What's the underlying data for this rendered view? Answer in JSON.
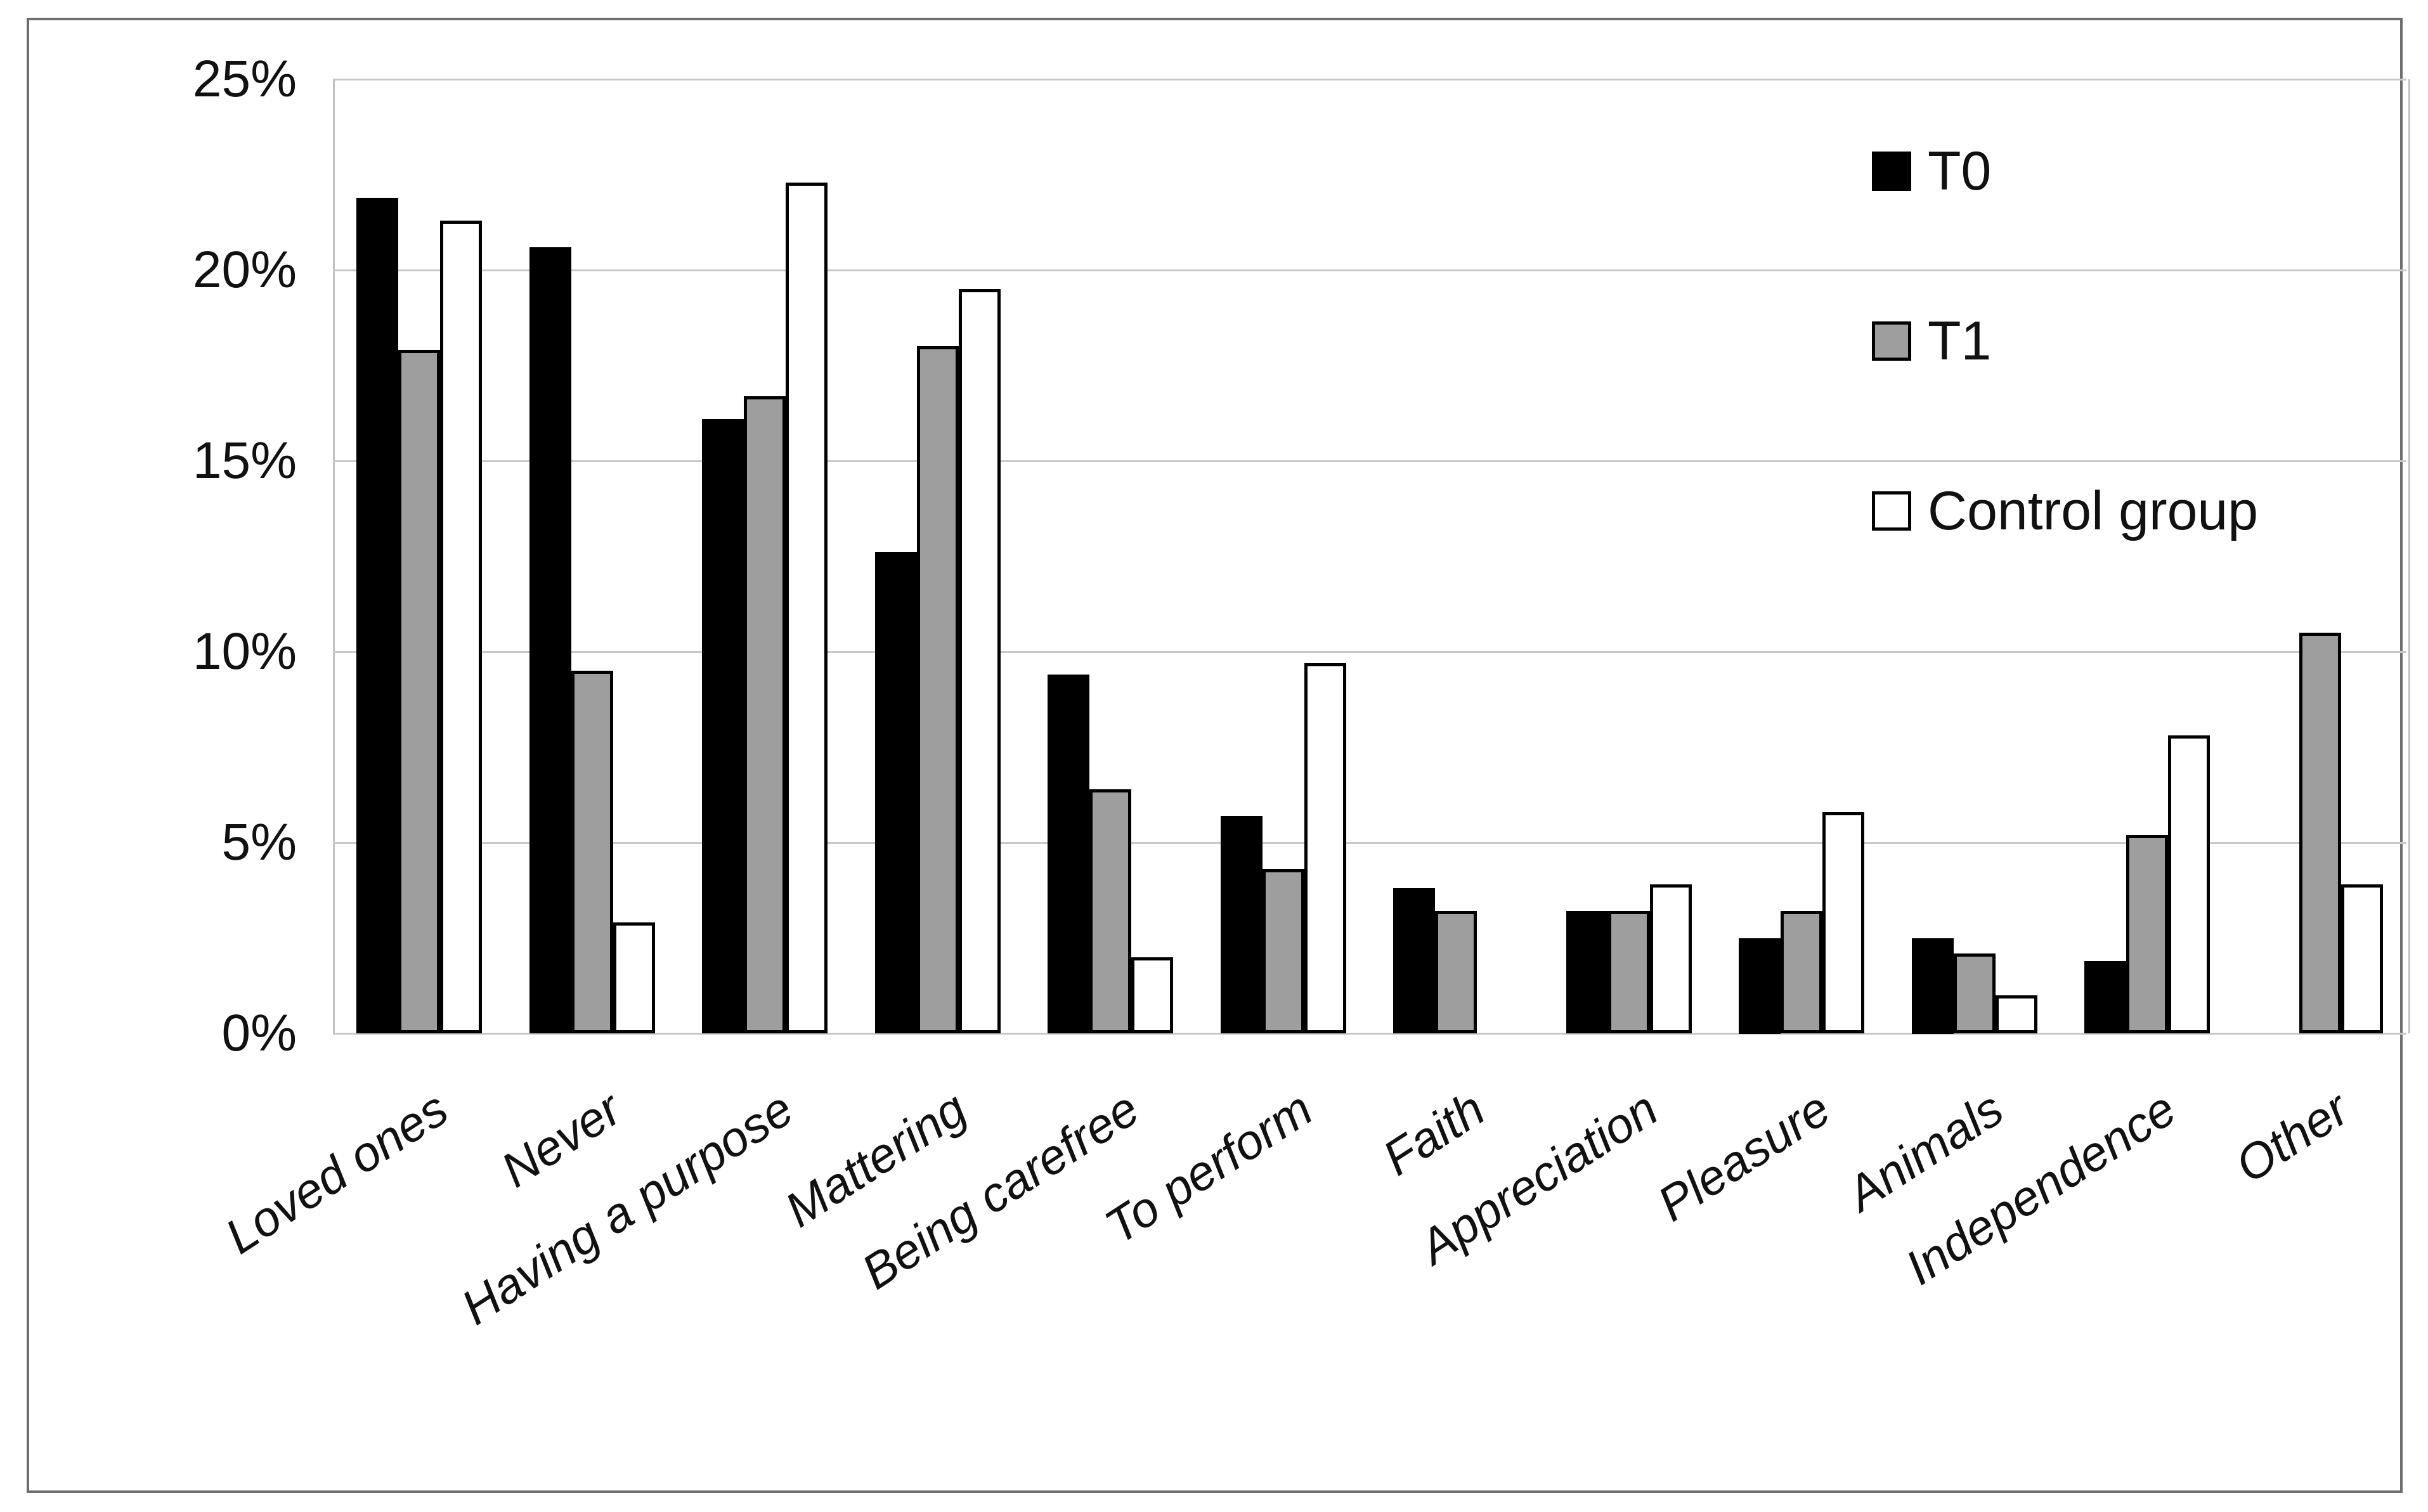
{
  "figure": {
    "background": "#ffffff",
    "border_color": "#6f6f6f"
  },
  "chart_data": {
    "type": "bar",
    "title": "",
    "xlabel": "",
    "ylabel": "",
    "categories": [
      "Loved ones",
      "Never",
      "Having a purpose",
      "Mattering",
      "Being carefree",
      "To perform",
      "Faith",
      "Appreciation",
      "Pleasure",
      "Animals",
      "Independence",
      "Other"
    ],
    "series": [
      {
        "name": "T0",
        "color": "#000000",
        "values": [
          21.9,
          20.6,
          16.1,
          12.6,
          9.4,
          5.7,
          3.8,
          3.2,
          2.5,
          2.5,
          1.9,
          0
        ]
      },
      {
        "name": "T1",
        "color": "#9e9e9e",
        "values": [
          17.9,
          9.5,
          16.7,
          18.0,
          6.4,
          4.3,
          3.2,
          3.2,
          3.2,
          2.1,
          5.2,
          10.5
        ]
      },
      {
        "name": "Control group",
        "color": "#ffffff",
        "values": [
          21.3,
          2.9,
          22.3,
          19.5,
          2.0,
          9.7,
          0,
          3.9,
          5.8,
          1.0,
          7.8,
          3.9
        ]
      }
    ],
    "y_axis": {
      "ticks": [
        "25%",
        "20%",
        "15%",
        "10%",
        "5%",
        "0%"
      ],
      "tick_values": [
        25,
        20,
        15,
        10,
        5,
        0
      ],
      "min": 0,
      "max": 25,
      "unit": "%"
    },
    "grid": true,
    "legend_position": "top-right",
    "bar_border_color": "#000000",
    "gridline_color": "#c9c9c9"
  }
}
